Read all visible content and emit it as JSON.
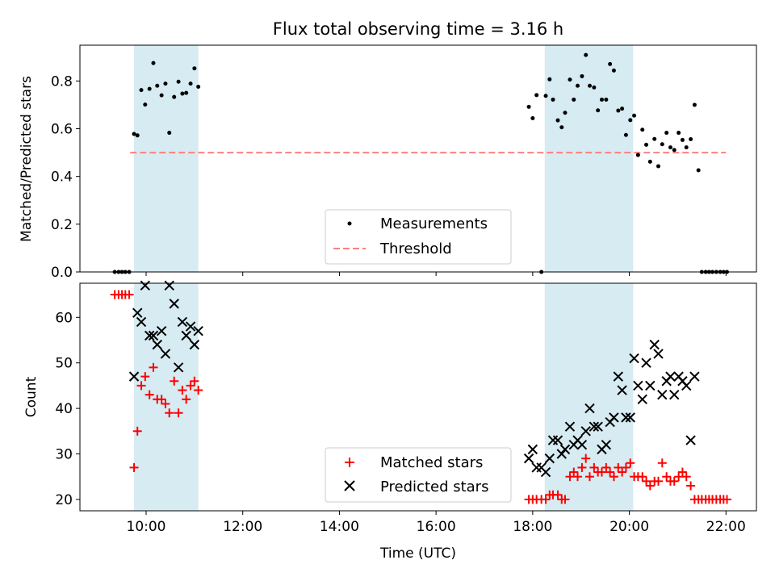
{
  "chart_data": [
    {
      "type": "scatter",
      "title": "Flux total observing time = 3.16 h",
      "xlabel": "",
      "ylabel": "Matched/Predicted stars",
      "xlim": [
        8.63,
        22.63
      ],
      "ylim": [
        0.0,
        0.95
      ],
      "yticks": [
        "0.0",
        "0.2",
        "0.4",
        "0.6",
        "0.8"
      ],
      "ytick_values": [
        0.0,
        0.2,
        0.4,
        0.6,
        0.8
      ],
      "shaded_ranges": [
        [
          9.75,
          11.08
        ],
        [
          18.25,
          20.08
        ]
      ],
      "threshold": {
        "label": "Threshold",
        "value": 0.5,
        "x_range": [
          9.67,
          22.0
        ],
        "color": "#ff8080"
      },
      "legend": [
        "Measurements",
        "Threshold"
      ],
      "series": [
        {
          "name": "Measurements",
          "color": "#000000",
          "x": [
            9.35,
            9.43,
            9.5,
            9.57,
            9.65,
            9.75,
            9.82,
            9.9,
            9.98,
            10.07,
            10.15,
            10.23,
            10.32,
            10.4,
            10.48,
            10.58,
            10.67,
            10.75,
            10.83,
            10.92,
            11.0,
            11.08,
            17.92,
            18.0,
            18.08,
            18.18,
            18.27,
            18.35,
            18.42,
            18.52,
            18.6,
            18.67,
            18.77,
            18.85,
            18.93,
            19.02,
            19.1,
            19.18,
            19.27,
            19.35,
            19.43,
            19.52,
            19.6,
            19.68,
            19.77,
            19.85,
            19.93,
            20.02,
            20.1,
            20.18,
            20.27,
            20.35,
            20.43,
            20.52,
            20.6,
            20.68,
            20.77,
            20.85,
            20.93,
            21.02,
            21.1,
            21.18,
            21.27,
            21.35,
            21.43,
            21.5,
            21.58,
            21.65,
            21.72,
            21.8,
            21.88,
            21.95,
            22.02
          ],
          "y": [
            0,
            0,
            0,
            0,
            0,
            0.578,
            0.572,
            0.762,
            0.701,
            0.767,
            0.875,
            0.78,
            0.74,
            0.789,
            0.583,
            0.733,
            0.797,
            0.747,
            0.75,
            0.789,
            0.853,
            0.776,
            0.692,
            0.644,
            0.741,
            0,
            0.738,
            0.807,
            0.722,
            0.635,
            0.606,
            0.667,
            0.806,
            0.722,
            0.78,
            0.82,
            0.909,
            0.78,
            0.773,
            0.677,
            0.722,
            0.722,
            0.871,
            0.844,
            0.676,
            0.684,
            0.574,
            0.636,
            0.655,
            0.49,
            0.596,
            0.533,
            0.462,
            0.557,
            0.443,
            0.535,
            0.583,
            0.522,
            0.511,
            0.583,
            0.553,
            0.522,
            0.556,
            0.7,
            0.426,
            0,
            0,
            0,
            0,
            0,
            0,
            0,
            0
          ]
        }
      ]
    },
    {
      "type": "scatter",
      "xlabel": "Time (UTC)",
      "ylabel": "Count",
      "xlim": [
        8.63,
        22.63
      ],
      "ylim": [
        17.5,
        67.5
      ],
      "yticks": [
        "20",
        "30",
        "40",
        "50",
        "60"
      ],
      "ytick_values": [
        20,
        30,
        40,
        50,
        60
      ],
      "xticks": [
        "10:00",
        "12:00",
        "14:00",
        "16:00",
        "18:00",
        "20:00",
        "22:00"
      ],
      "xtick_values": [
        10,
        12,
        14,
        16,
        18,
        20,
        22
      ],
      "shaded_ranges": [
        [
          9.75,
          11.08
        ],
        [
          18.25,
          20.08
        ]
      ],
      "legend": [
        "Matched stars",
        "Predicted stars"
      ],
      "series": [
        {
          "name": "Matched stars",
          "color": "#ff0000",
          "x": [
            9.35,
            9.43,
            9.5,
            9.57,
            9.65,
            9.75,
            9.82,
            9.9,
            9.98,
            10.07,
            10.15,
            10.23,
            10.32,
            10.4,
            10.48,
            10.58,
            10.67,
            10.75,
            10.83,
            10.92,
            11.0,
            11.08,
            17.92,
            18.0,
            18.08,
            18.18,
            18.27,
            18.35,
            18.42,
            18.52,
            18.6,
            18.67,
            18.77,
            18.85,
            18.93,
            19.02,
            19.1,
            19.18,
            19.27,
            19.35,
            19.43,
            19.52,
            19.6,
            19.68,
            19.77,
            19.85,
            19.93,
            20.02,
            20.1,
            20.18,
            20.27,
            20.35,
            20.43,
            20.52,
            20.6,
            20.68,
            20.77,
            20.85,
            20.93,
            21.02,
            21.1,
            21.18,
            21.27,
            21.35,
            21.43,
            21.5,
            21.58,
            21.65,
            21.72,
            21.8,
            21.88,
            21.95,
            22.02
          ],
          "y": [
            65,
            65,
            65,
            65,
            65,
            27,
            35,
            45,
            47,
            43,
            49,
            42,
            42,
            41,
            39,
            46,
            39,
            44,
            42,
            45,
            46,
            44,
            20,
            20,
            20,
            20,
            20,
            21,
            21,
            21,
            20,
            20,
            25,
            26,
            25,
            27,
            29,
            25,
            27,
            26,
            26,
            27,
            26,
            25,
            27,
            26,
            27,
            28,
            25,
            25,
            25,
            24,
            23,
            24,
            24,
            28,
            25,
            24,
            24,
            25,
            26,
            25,
            23,
            20,
            20,
            20,
            20,
            20,
            20,
            20,
            20,
            20,
            20
          ]
        },
        {
          "name": "Predicted stars",
          "color": "#000000",
          "x": [
            9.75,
            9.82,
            9.9,
            9.98,
            10.07,
            10.15,
            10.23,
            10.32,
            10.4,
            10.48,
            10.58,
            10.67,
            10.75,
            10.83,
            10.92,
            11.0,
            11.08,
            17.92,
            18.0,
            18.08,
            18.18,
            18.27,
            18.35,
            18.42,
            18.52,
            18.6,
            18.67,
            18.77,
            18.85,
            18.93,
            19.02,
            19.1,
            19.18,
            19.27,
            19.35,
            19.43,
            19.52,
            19.6,
            19.68,
            19.77,
            19.85,
            19.93,
            20.02,
            20.1,
            20.18,
            20.27,
            20.35,
            20.43,
            20.52,
            20.6,
            20.68,
            20.77,
            20.85,
            20.93,
            21.02,
            21.1,
            21.18,
            21.27,
            21.35
          ],
          "y": [
            47,
            61,
            59,
            67,
            56,
            56,
            54,
            57,
            52,
            67,
            63,
            49,
            59,
            56,
            58,
            54,
            57,
            29,
            31,
            27,
            27,
            26,
            29,
            33,
            33,
            30,
            31,
            36,
            32,
            33,
            32,
            35,
            40,
            36,
            36,
            31,
            32,
            37,
            38,
            47,
            44,
            38,
            38,
            51,
            45,
            42,
            50,
            45,
            54,
            52,
            43,
            46,
            47,
            43,
            47,
            46,
            45,
            33,
            47
          ]
        }
      ]
    }
  ]
}
